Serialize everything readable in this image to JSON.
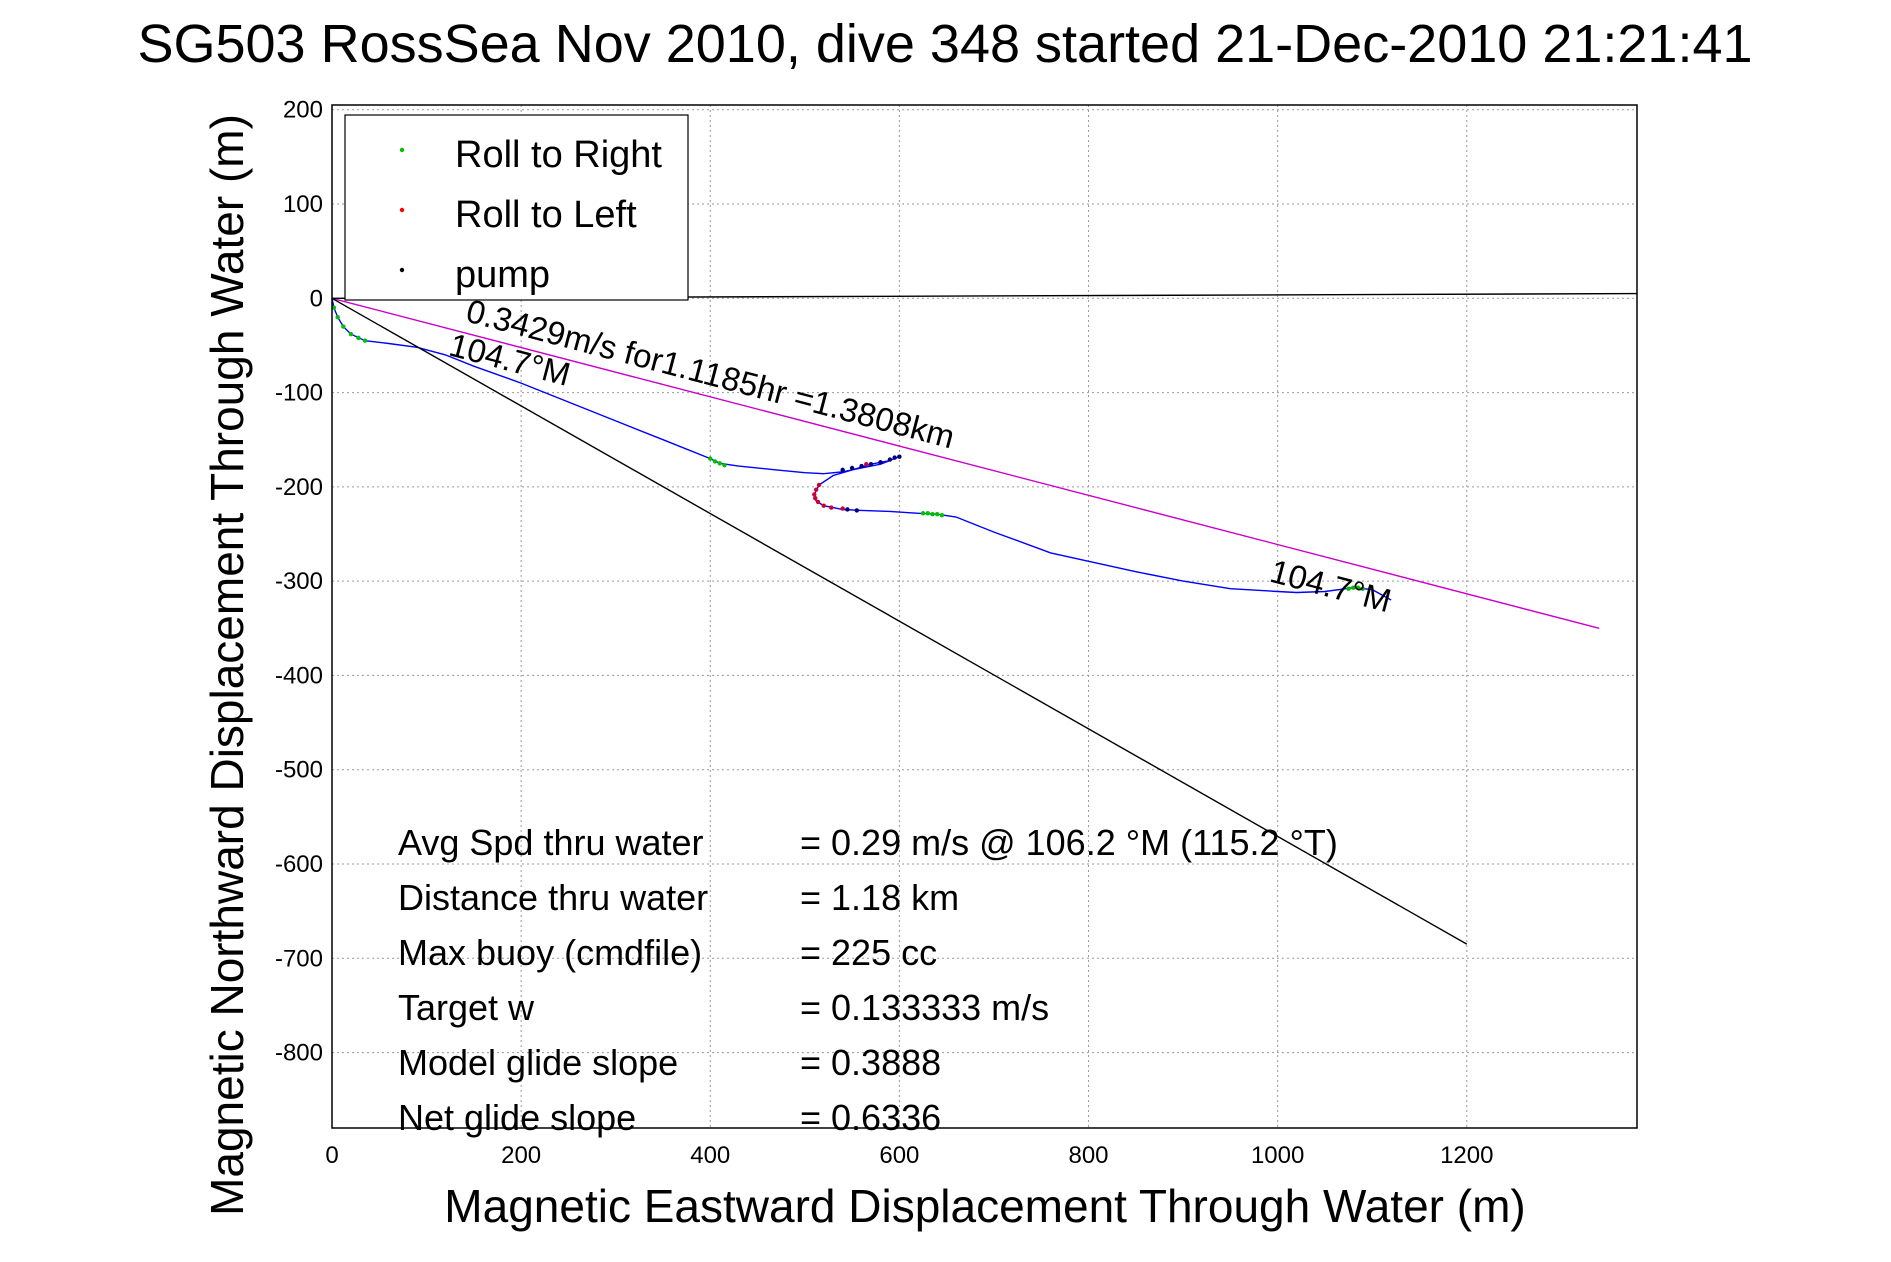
{
  "chart_data": {
    "type": "line",
    "title": "SG503 RossSea Nov 2010, dive 348 started 21-Dec-2010 21:21:41",
    "xlabel": "Magnetic Eastward Displacement Through Water (m)",
    "ylabel": "Magnetic Northward Displacement Through Water (m)",
    "xlim": [
      0,
      1380
    ],
    "ylim": [
      -880,
      205
    ],
    "xticks": [
      0,
      200,
      400,
      600,
      800,
      1000,
      1200
    ],
    "yticks": [
      200,
      100,
      0,
      -100,
      -200,
      -300,
      -400,
      -500,
      -600,
      -700,
      -800
    ],
    "grid": true,
    "legend_position": "top-left",
    "legend": [
      {
        "label": "Roll to Right",
        "color": "#00c000"
      },
      {
        "label": "Roll to Left",
        "color": "#ff0000"
      },
      {
        "label": "pump",
        "color": "#000000"
      }
    ],
    "series": [
      {
        "name": "",
        "color": "#0000ff",
        "x": [
          0,
          2,
          6,
          12,
          20,
          35,
          60,
          90,
          120,
          150,
          200,
          250,
          300,
          350,
          400,
          410,
          430,
          470,
          500,
          520,
          540,
          560,
          580,
          590,
          600,
          590,
          570,
          550,
          530,
          515,
          510,
          512,
          520,
          530,
          540,
          560,
          590,
          620,
          640,
          660,
          700,
          760,
          850,
          900,
          950,
          1000,
          1020,
          1050,
          1080,
          1100,
          1120
        ],
        "y": [
          0,
          -10,
          -20,
          -30,
          -38,
          -45,
          -48,
          -52,
          -60,
          -72,
          -90,
          -110,
          -130,
          -150,
          -170,
          -175,
          -178,
          -182,
          -185,
          -186,
          -184,
          -180,
          -176,
          -172,
          -168,
          -172,
          -176,
          -182,
          -188,
          -198,
          -208,
          -215,
          -220,
          -222,
          -224,
          -225,
          -226,
          -228,
          -229,
          -232,
          -248,
          -270,
          -290,
          -300,
          -308,
          -311,
          -312,
          -311,
          -307,
          -309,
          -320
        ]
      },
      {
        "name": "",
        "color": "#cc00cc",
        "x": [
          0,
          1340
        ],
        "y": [
          0,
          -350
        ]
      },
      {
        "name": "",
        "color": "#000000",
        "x": [
          0,
          1200
        ],
        "y": [
          0,
          -685
        ]
      },
      {
        "name": "",
        "color": "#000000",
        "x": [
          0,
          1380
        ],
        "y": [
          0,
          5
        ]
      }
    ],
    "markers": {
      "roll_right": [
        {
          "x": [
            2,
            6,
            12,
            20,
            28,
            35
          ],
          "y": [
            -10,
            -20,
            -30,
            -38,
            -42,
            -45
          ]
        },
        {
          "x": [
            400,
            405,
            410,
            415
          ],
          "y": [
            -170,
            -173,
            -175,
            -177
          ]
        },
        {
          "x": [
            625,
            630,
            635,
            640,
            645
          ],
          "y": [
            -228,
            -228,
            -229,
            -229,
            -230
          ]
        },
        {
          "x": [
            1075,
            1080,
            1085,
            1090
          ],
          "y": [
            -308,
            -307,
            -307,
            -308
          ]
        }
      ],
      "roll_left": [
        {
          "x": [
            515,
            512,
            510,
            511,
            514,
            520,
            528,
            540,
            565,
            580
          ],
          "y": [
            -198,
            -203,
            -208,
            -212,
            -216,
            -220,
            -222,
            -223,
            -176,
            -174
          ]
        }
      ],
      "pump": [
        {
          "x": [
            540,
            550,
            560,
            570,
            580,
            590,
            595,
            600
          ],
          "y": [
            -182,
            -180,
            -178,
            -176,
            -174,
            -171,
            -169,
            -168
          ]
        },
        {
          "x": [
            545,
            555
          ],
          "y": [
            -224,
            -225
          ]
        }
      ]
    },
    "annotations": [
      {
        "text": "0.3429m/s for1.1185hr =1.3808km",
        "x": 140,
        "y": -24,
        "angle": 14.7
      },
      {
        "text": "104.7°M",
        "x": 122,
        "y": -60,
        "angle": 14.7
      },
      {
        "text": "104.7°M",
        "x": 990,
        "y": -300,
        "angle": 14.7
      }
    ],
    "stats": [
      {
        "label": "Avg Spd thru water",
        "value": "=  0.29 m/s @ 106.2 °M (115.2 °T)"
      },
      {
        "label": "Distance thru water",
        "value": "=  1.18 km"
      },
      {
        "label": "Max buoy (cmdfile)",
        "value": "= 225 cc"
      },
      {
        "label": "Target w",
        "value": "= 0.133333 m/s"
      },
      {
        "label": "Model glide slope",
        "value": "= 0.3888"
      },
      {
        "label": "Net glide slope",
        "value": "= 0.6336"
      }
    ]
  }
}
